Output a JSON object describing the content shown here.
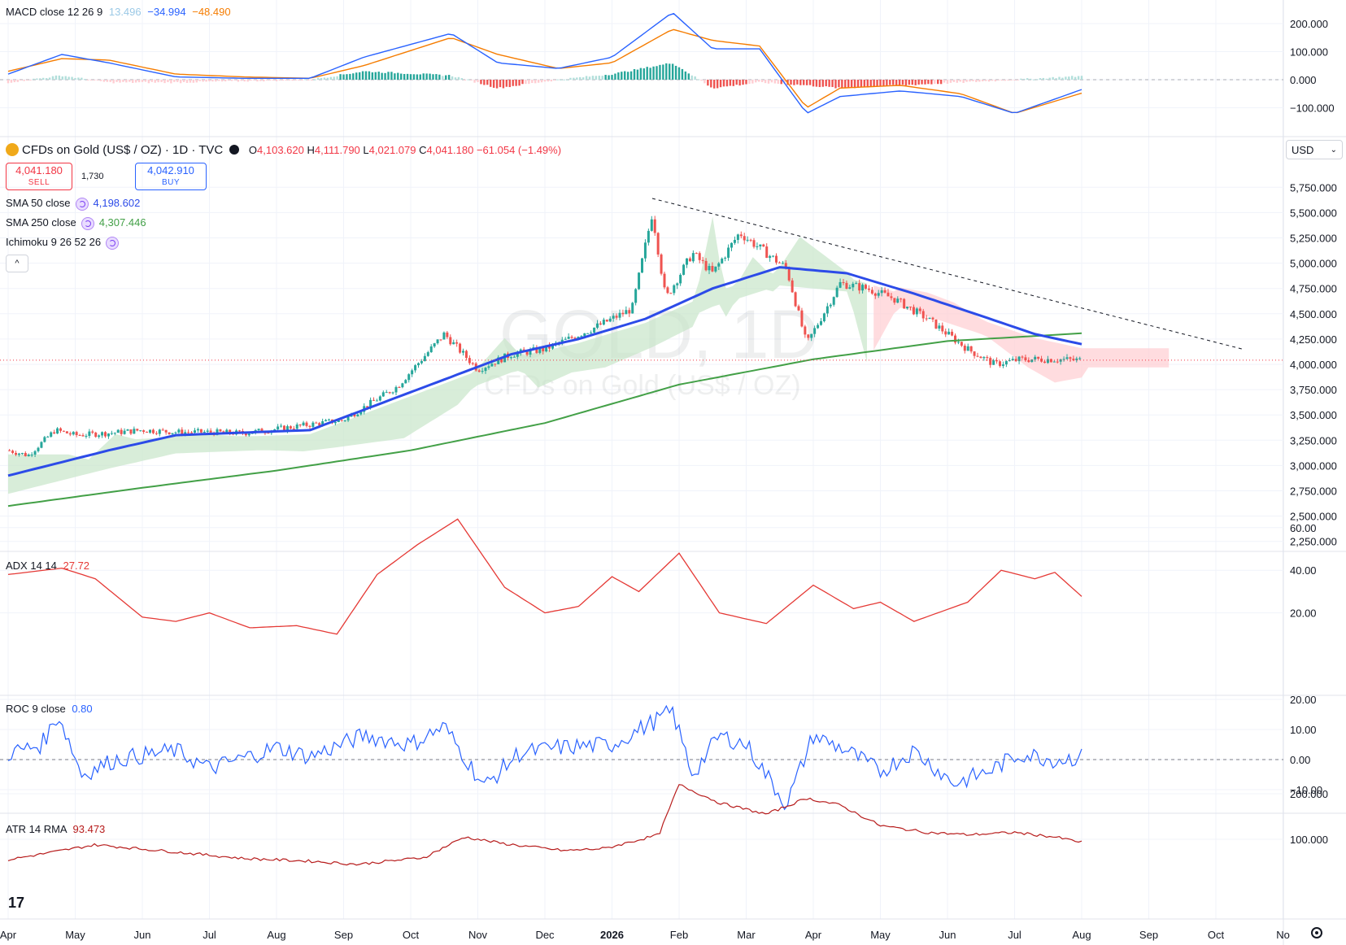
{
  "symbol": {
    "title": "CFDs on Gold (US$ / OZ) · 1D · TVC",
    "open_label": "O",
    "open": "4,103.620",
    "high_label": "H",
    "high": "4,111.790",
    "low_label": "L",
    "low": "4,021.079",
    "close_label": "C",
    "close": "4,041.180",
    "change": "−61.054 (−1.49%)",
    "sell_price": "4,041.180",
    "sell_label": "SELL",
    "buy_price": "4,042.910",
    "buy_label": "BUY",
    "spread": "1,730",
    "watermark_big": "GOLD, 1D",
    "watermark_small": "CFDs on Gold (US$ / OZ)",
    "currency": "USD"
  },
  "colors": {
    "up": "#26a69a",
    "down": "#ef5350",
    "sma50": "#2c4be8",
    "sma250": "#43a047",
    "macd": "#2962ff",
    "signal": "#f57c00",
    "adx": "#e53935",
    "roc": "#2962ff",
    "atr": "#b71c1c",
    "cloud_bull": "#c8e6c9",
    "cloud_bear": "#ffcdd2"
  },
  "indicators": {
    "macd": {
      "label": "MACD close 12 26 9",
      "hist": "13.496",
      "macd": "−34.994",
      "signal": "−48.490",
      "ticks": [
        "200.000",
        "100.000",
        "0.000",
        "−100.000"
      ]
    },
    "sma50": {
      "label": "SMA 50 close",
      "value": "4,198.602"
    },
    "sma250": {
      "label": "SMA 250 close",
      "value": "4,307.446"
    },
    "ichimoku": {
      "label": "Ichimoku 9 26 52 26"
    },
    "adx": {
      "label": "ADX 14 14",
      "value": "27.72",
      "ticks": [
        "60.00",
        "40.00",
        "20.00"
      ]
    },
    "roc": {
      "label": "ROC 9 close",
      "value": "0.80",
      "ticks": [
        "20.00",
        "10.00",
        "0.00",
        "−10.00"
      ]
    },
    "atr": {
      "label": "ATR 14 RMA",
      "value": "93.473",
      "ticks": [
        "200.000",
        "100.000"
      ]
    }
  },
  "chart_data": {
    "type": "candlestick",
    "price_axis": {
      "ticks": [
        "5,750.000",
        "5,500.000",
        "5,250.000",
        "5,000.000",
        "4,750.000",
        "4,500.000",
        "4,250.000",
        "4,000.000",
        "3,750.000",
        "3,500.000",
        "3,250.000",
        "3,000.000",
        "2,750.000",
        "2,500.000",
        "2,250.000"
      ]
    },
    "time_axis": [
      "Apr",
      "May",
      "Jun",
      "Jul",
      "Aug",
      "Sep",
      "Oct",
      "Nov",
      "Dec",
      "2026",
      "Feb",
      "Mar",
      "Apr",
      "May",
      "Jun",
      "Jul",
      "Aug",
      "Sep",
      "Oct",
      "No"
    ],
    "price_path": [
      [
        0,
        3150
      ],
      [
        0.3,
        3100
      ],
      [
        0.7,
        3350
      ],
      [
        1.0,
        3300
      ],
      [
        1.5,
        3320
      ],
      [
        2.0,
        3350
      ],
      [
        2.5,
        3330
      ],
      [
        3.0,
        3330
      ],
      [
        3.5,
        3320
      ],
      [
        4.0,
        3360
      ],
      [
        5.0,
        3450
      ],
      [
        5.8,
        3780
      ],
      [
        6.5,
        4300
      ],
      [
        7.0,
        3950
      ],
      [
        7.5,
        4100
      ],
      [
        8.0,
        4150
      ],
      [
        8.7,
        4350
      ],
      [
        9.3,
        4550
      ],
      [
        9.6,
        5500
      ],
      [
        9.8,
        4650
      ],
      [
        10.2,
        5100
      ],
      [
        10.5,
        4900
      ],
      [
        10.9,
        5300
      ],
      [
        11.2,
        5150
      ],
      [
        11.6,
        4950
      ],
      [
        11.9,
        4200
      ],
      [
        12.4,
        4800
      ],
      [
        12.8,
        4750
      ],
      [
        13.2,
        4650
      ],
      [
        13.7,
        4450
      ],
      [
        14.3,
        4150
      ],
      [
        14.7,
        4000
      ],
      [
        15.1,
        4050
      ],
      [
        15.6,
        4050
      ],
      [
        16.0,
        4041
      ]
    ],
    "sma50": [
      [
        0,
        2900
      ],
      [
        1.5,
        3150
      ],
      [
        2.5,
        3300
      ],
      [
        4.5,
        3350
      ],
      [
        5.5,
        3600
      ],
      [
        6.5,
        3850
      ],
      [
        7.5,
        4100
      ],
      [
        8.5,
        4250
      ],
      [
        9.5,
        4450
      ],
      [
        10.5,
        4750
      ],
      [
        11.5,
        4960
      ],
      [
        12.5,
        4900
      ],
      [
        13.5,
        4700
      ],
      [
        14.5,
        4480
      ],
      [
        15.3,
        4300
      ],
      [
        16.0,
        4199
      ]
    ],
    "sma250": [
      [
        0,
        2600
      ],
      [
        2,
        2780
      ],
      [
        4,
        2950
      ],
      [
        6,
        3150
      ],
      [
        8,
        3420
      ],
      [
        10,
        3800
      ],
      [
        12,
        4050
      ],
      [
        14,
        4230
      ],
      [
        16,
        4307
      ]
    ],
    "trendline": [
      [
        9.6,
        5640
      ],
      [
        18.4,
        4150
      ]
    ],
    "macd_line": [
      [
        0,
        20
      ],
      [
        0.8,
        90
      ],
      [
        1.5,
        60
      ],
      [
        2.5,
        10
      ],
      [
        3.5,
        5
      ],
      [
        4.5,
        5
      ],
      [
        5.3,
        80
      ],
      [
        6.6,
        165
      ],
      [
        7.3,
        60
      ],
      [
        8.2,
        40
      ],
      [
        9.0,
        80
      ],
      [
        9.9,
        240
      ],
      [
        10.5,
        110
      ],
      [
        11.2,
        110
      ],
      [
        11.9,
        -120
      ],
      [
        12.4,
        -60
      ],
      [
        13.3,
        -40
      ],
      [
        14.2,
        -60
      ],
      [
        15.0,
        -120
      ],
      [
        16.0,
        -35
      ]
    ],
    "macd_signal": [
      [
        0,
        30
      ],
      [
        0.8,
        75
      ],
      [
        1.5,
        70
      ],
      [
        2.5,
        20
      ],
      [
        3.5,
        10
      ],
      [
        4.5,
        5
      ],
      [
        5.3,
        50
      ],
      [
        6.6,
        150
      ],
      [
        7.3,
        90
      ],
      [
        8.2,
        40
      ],
      [
        9.0,
        60
      ],
      [
        9.9,
        180
      ],
      [
        10.5,
        140
      ],
      [
        11.2,
        120
      ],
      [
        11.9,
        -100
      ],
      [
        12.4,
        -30
      ],
      [
        13.3,
        -20
      ],
      [
        14.2,
        -50
      ],
      [
        15.0,
        -120
      ],
      [
        16.0,
        -48
      ]
    ],
    "adx": [
      [
        0,
        38
      ],
      [
        0.8,
        41
      ],
      [
        1.3,
        36
      ],
      [
        2.0,
        18
      ],
      [
        2.5,
        16
      ],
      [
        3.0,
        20
      ],
      [
        3.6,
        13
      ],
      [
        4.3,
        14
      ],
      [
        4.9,
        10
      ],
      [
        5.5,
        38
      ],
      [
        6.1,
        52
      ],
      [
        6.7,
        64
      ],
      [
        7.4,
        32
      ],
      [
        8.0,
        20
      ],
      [
        8.5,
        23
      ],
      [
        9.0,
        37
      ],
      [
        9.4,
        30
      ],
      [
        10.0,
        48
      ],
      [
        10.6,
        20
      ],
      [
        11.3,
        15
      ],
      [
        12.0,
        33
      ],
      [
        12.6,
        22
      ],
      [
        13.0,
        25
      ],
      [
        13.5,
        16
      ],
      [
        14.3,
        25
      ],
      [
        14.8,
        40
      ],
      [
        15.3,
        36
      ],
      [
        15.6,
        39
      ],
      [
        16.0,
        27.7
      ]
    ],
    "roc": [
      [
        0,
        2
      ],
      [
        0.5,
        5
      ],
      [
        0.75,
        15
      ],
      [
        1.1,
        -5
      ],
      [
        1.6,
        0
      ],
      [
        2.5,
        3
      ],
      [
        3.0,
        -3
      ],
      [
        4.0,
        4
      ],
      [
        4.5,
        1
      ],
      [
        5.3,
        8
      ],
      [
        6.0,
        5
      ],
      [
        6.5,
        11
      ],
      [
        7.1,
        -9
      ],
      [
        7.6,
        2
      ],
      [
        8.2,
        4
      ],
      [
        9.0,
        5
      ],
      [
        9.9,
        16
      ],
      [
        10.2,
        -5
      ],
      [
        10.6,
        8
      ],
      [
        11.0,
        5
      ],
      [
        11.6,
        -15
      ],
      [
        12.0,
        8
      ],
      [
        12.5,
        3
      ],
      [
        13.0,
        -4
      ],
      [
        13.5,
        3
      ],
      [
        14.1,
        -8
      ],
      [
        14.6,
        -4
      ],
      [
        15.1,
        2
      ],
      [
        15.6,
        0
      ],
      [
        16.0,
        0.8
      ]
    ],
    "atr": [
      [
        0,
        55
      ],
      [
        1.3,
        88
      ],
      [
        2.5,
        72
      ],
      [
        3.5,
        58
      ],
      [
        4.5,
        52
      ],
      [
        5.2,
        45
      ],
      [
        6.2,
        60
      ],
      [
        6.8,
        105
      ],
      [
        7.4,
        90
      ],
      [
        8.3,
        75
      ],
      [
        8.9,
        80
      ],
      [
        9.7,
        110
      ],
      [
        10.0,
        220
      ],
      [
        10.6,
        180
      ],
      [
        11.3,
        155
      ],
      [
        11.9,
        190
      ],
      [
        12.4,
        175
      ],
      [
        13.0,
        130
      ],
      [
        13.7,
        115
      ],
      [
        14.3,
        110
      ],
      [
        15.0,
        115
      ],
      [
        15.6,
        105
      ],
      [
        16.0,
        93.5
      ]
    ]
  }
}
